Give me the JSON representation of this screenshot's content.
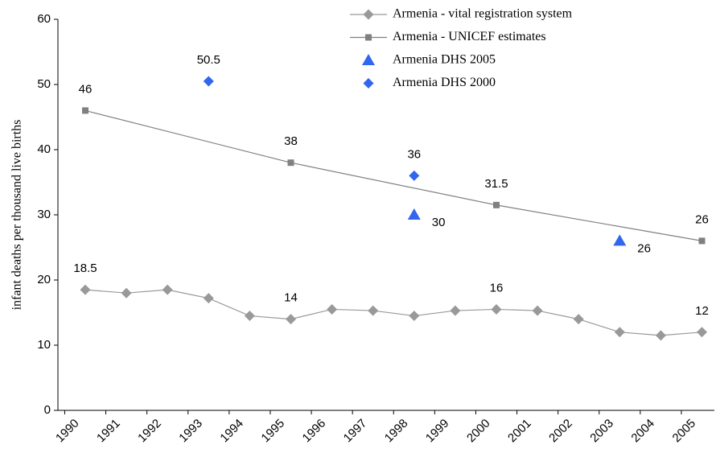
{
  "chart_data": {
    "type": "line",
    "y_label": "infant deaths per thousand live births",
    "categories": [
      "1990",
      "1991",
      "1992",
      "1993",
      "1994",
      "1995",
      "1996",
      "1997",
      "1998",
      "1999",
      "2000",
      "2001",
      "2002",
      "2003",
      "2004",
      "2005"
    ],
    "ylim": [
      0,
      60
    ],
    "yticks": [
      0,
      10,
      20,
      30,
      40,
      50,
      60
    ],
    "grid": false,
    "legend": "top-right",
    "series": [
      {
        "name": "Armenia - vital registration system",
        "color": "#999999",
        "marker": "diamond",
        "line": true,
        "x": [
          "1990",
          "1991",
          "1992",
          "1993",
          "1994",
          "1995",
          "1996",
          "1997",
          "1998",
          "1999",
          "2000",
          "2001",
          "2002",
          "2003",
          "2004",
          "2005"
        ],
        "values": [
          18.5,
          18,
          18.5,
          17.2,
          14.5,
          14,
          15.5,
          15.3,
          14.5,
          15.3,
          15.5,
          15.3,
          14,
          12,
          11.5,
          12
        ],
        "value_labels": [
          "18.5",
          null,
          null,
          null,
          null,
          "14",
          null,
          null,
          null,
          null,
          "16",
          null,
          null,
          null,
          null,
          "12"
        ]
      },
      {
        "name": "Armenia - UNICEF estimates",
        "color": "#808080",
        "marker": "square",
        "line": true,
        "x": [
          "1990",
          "1995",
          "2000",
          "2005"
        ],
        "values": [
          46,
          38,
          31.5,
          26
        ],
        "value_labels": [
          "46",
          "38",
          "31.5",
          "26"
        ]
      },
      {
        "name": "Armenia DHS 2005",
        "color": "#3366ee",
        "marker": "triangle",
        "line": false,
        "x": [
          "1998",
          "2003"
        ],
        "values": [
          30,
          26
        ],
        "value_labels": [
          "30",
          "26"
        ]
      },
      {
        "name": "Armenia DHS 2000",
        "color": "#3366ee",
        "marker": "diamond",
        "line": false,
        "x": [
          "1993",
          "1998"
        ],
        "values": [
          50.5,
          36
        ],
        "value_labels": [
          "50.5",
          "36"
        ]
      }
    ]
  }
}
